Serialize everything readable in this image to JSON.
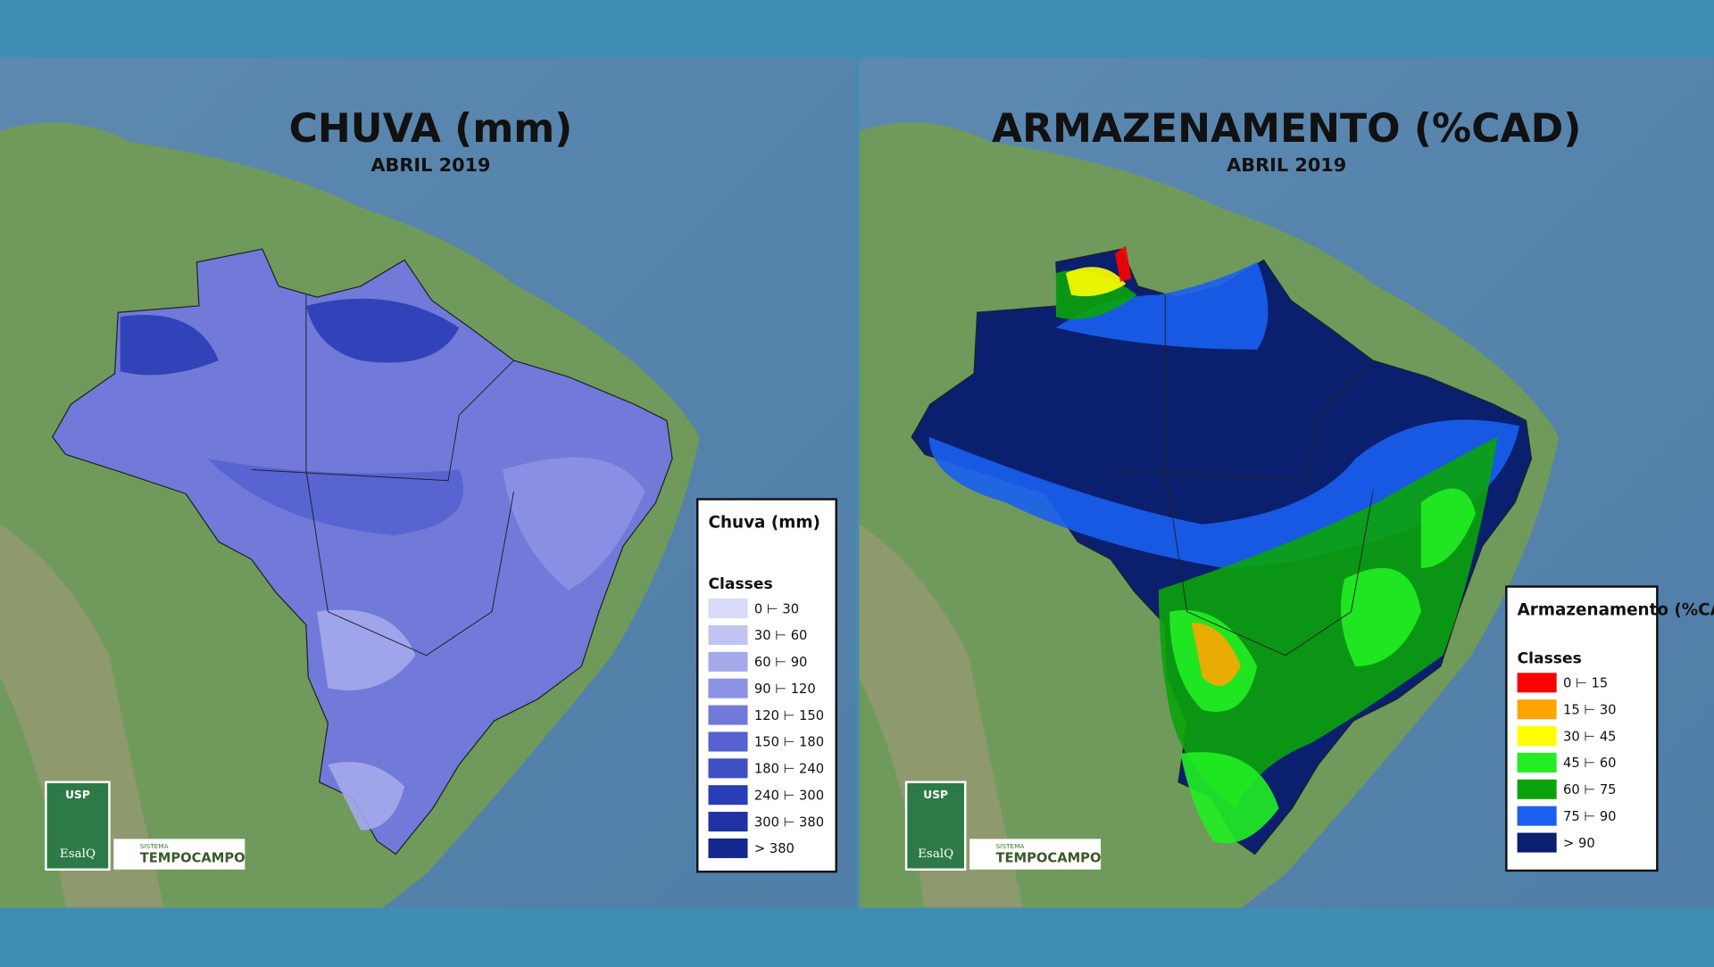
{
  "maps": [
    {
      "title": "CHUVA (mm)",
      "subtitle": "ABRIL 2019",
      "legend": {
        "title": "Chuva (mm)",
        "subtitle": "Classes",
        "classes": [
          {
            "label": "0 ⊢ 30",
            "color": "#d9daf7"
          },
          {
            "label": "30 ⊢ 60",
            "color": "#c1c3f2"
          },
          {
            "label": "60 ⊢ 90",
            "color": "#a5a9ec"
          },
          {
            "label": "90 ⊢ 120",
            "color": "#8c92e4"
          },
          {
            "label": "120 ⊢ 150",
            "color": "#717ad9"
          },
          {
            "label": "150 ⊢ 180",
            "color": "#5562cf"
          },
          {
            "label": "180 ⊢ 240",
            "color": "#3f4fc4"
          },
          {
            "label": "240 ⊢ 300",
            "color": "#2b3db6"
          },
          {
            "label": "300 ⊢ 380",
            "color": "#1f31a3"
          },
          {
            "label": "> 380",
            "color": "#15288f"
          }
        ]
      }
    },
    {
      "title": "ARMAZENAMENTO (%CAD)",
      "subtitle": "ABRIL 2019",
      "legend": {
        "title": "Armazenamento (%CAD)",
        "subtitle": "Classes",
        "classes": [
          {
            "label": "0 ⊢ 15",
            "color": "#ff0000"
          },
          {
            "label": "15 ⊢ 30",
            "color": "#ffa500"
          },
          {
            "label": "30 ⊢ 45",
            "color": "#ffff00"
          },
          {
            "label": "45 ⊢ 60",
            "color": "#22ee22"
          },
          {
            "label": "60 ⊢ 75",
            "color": "#0aa30a"
          },
          {
            "label": "75 ⊢ 90",
            "color": "#1a5ff0"
          },
          {
            "label": "> 90",
            "color": "#0a1f6e"
          }
        ]
      }
    }
  ],
  "logos": {
    "usp": "USP",
    "esalq": "EsalQ",
    "sistema": "SISTEMA",
    "tempocampo": "TEMPOCAMPO"
  }
}
